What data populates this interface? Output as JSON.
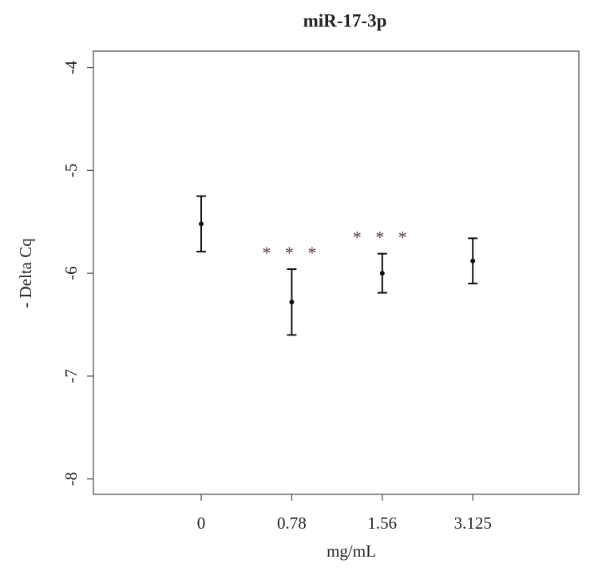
{
  "chart_data": {
    "type": "errorbar",
    "title": "miR-17-3p",
    "x_label": "mg/mL",
    "y_label": "- Delta Cq",
    "categories": [
      "0",
      "0.78",
      "1.56",
      "3.125"
    ],
    "values": [
      -5.52,
      -6.28,
      -6.0,
      -5.88
    ],
    "errors": [
      0.27,
      0.32,
      0.19,
      0.22
    ],
    "significance": [
      null,
      "* * *",
      "* * *",
      null
    ],
    "color": "#111111",
    "ylim": [
      -8.15,
      -3.84
    ],
    "yticks": [
      -8,
      -7,
      -6,
      -5,
      -4
    ]
  }
}
